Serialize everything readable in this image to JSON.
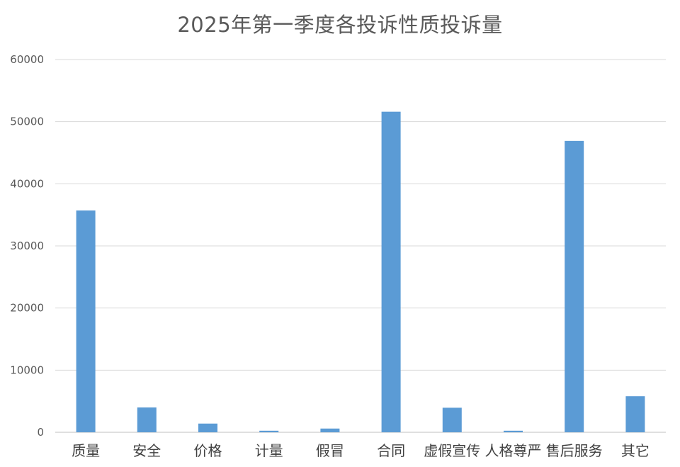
{
  "chart_data": {
    "type": "bar",
    "title": "2025年第一季度各投诉性质投诉量",
    "xlabel": "",
    "ylabel": "",
    "categories": [
      "质量",
      "安全",
      "价格",
      "计量",
      "假冒",
      "合同",
      "虚假宣传",
      "人格尊严",
      "售后服务",
      "其它"
    ],
    "values": [
      35700,
      4000,
      1400,
      250,
      600,
      51600,
      3950,
      250,
      46900,
      5800
    ],
    "ylim": [
      0,
      60000
    ],
    "yticks": [
      0,
      10000,
      20000,
      30000,
      40000,
      50000,
      60000
    ],
    "grid": true,
    "legend": "none",
    "colors": {
      "bar": "#5B9BD5",
      "grid": "#D9D9D9",
      "axis": "#BFBFBF"
    }
  }
}
